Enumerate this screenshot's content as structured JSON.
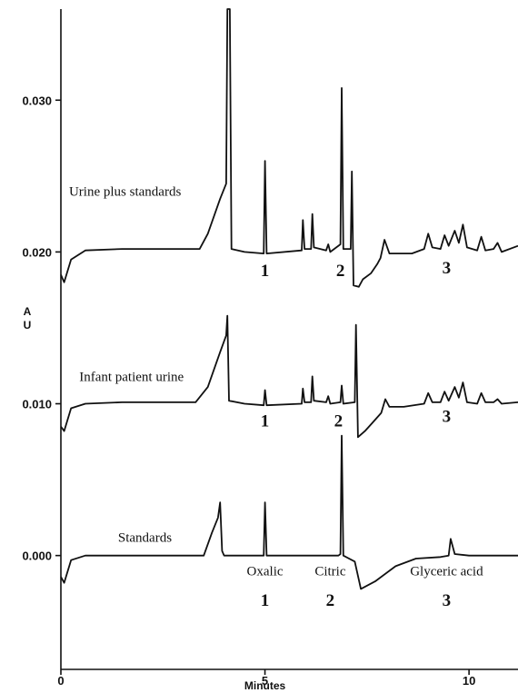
{
  "chart_data": {
    "type": "line",
    "xlabel": "Minutes",
    "ylabel": "AU",
    "xlim": [
      0,
      11.2
    ],
    "ylim": [
      -0.0075,
      0.036
    ],
    "x_ticks": [
      {
        "value": 0,
        "label": "0"
      },
      {
        "value": 5,
        "label": "5"
      },
      {
        "value": 10,
        "label": "10"
      }
    ],
    "y_ticks": [
      {
        "value": 0.0,
        "label": "0.000"
      },
      {
        "value": 0.01,
        "label": "0.010"
      },
      {
        "value": 0.02,
        "label": "0.020"
      },
      {
        "value": 0.03,
        "label": "0.030"
      }
    ],
    "series": [
      {
        "name": "Urine plus standards",
        "baseline": 0.0202,
        "start_value": 0.018,
        "points": [
          [
            0.0,
            0.0185
          ],
          [
            0.08,
            0.018
          ],
          [
            0.25,
            0.0195
          ],
          [
            0.6,
            0.0201
          ],
          [
            1.5,
            0.0202
          ],
          [
            3.4,
            0.0202
          ],
          [
            3.6,
            0.0212
          ],
          [
            3.9,
            0.0235
          ],
          [
            4.05,
            0.0245
          ],
          [
            4.08,
            0.036
          ],
          [
            4.14,
            0.036
          ],
          [
            4.18,
            0.0202
          ],
          [
            4.5,
            0.02
          ],
          [
            4.97,
            0.0199
          ],
          [
            5.0,
            0.026
          ],
          [
            5.04,
            0.0199
          ],
          [
            5.9,
            0.0201
          ],
          [
            5.93,
            0.0221
          ],
          [
            5.97,
            0.0202
          ],
          [
            6.13,
            0.0202
          ],
          [
            6.16,
            0.0225
          ],
          [
            6.2,
            0.0203
          ],
          [
            6.5,
            0.0201
          ],
          [
            6.55,
            0.0205
          ],
          [
            6.6,
            0.02
          ],
          [
            6.85,
            0.0205
          ],
          [
            6.88,
            0.0308
          ],
          [
            6.92,
            0.0202
          ],
          [
            7.1,
            0.0202
          ],
          [
            7.13,
            0.0253
          ],
          [
            7.17,
            0.0178
          ],
          [
            7.3,
            0.0177
          ],
          [
            7.4,
            0.0182
          ],
          [
            7.6,
            0.0186
          ],
          [
            7.75,
            0.0192
          ],
          [
            7.83,
            0.0196
          ],
          [
            7.93,
            0.0208
          ],
          [
            8.05,
            0.0199
          ],
          [
            8.3,
            0.0199
          ],
          [
            8.6,
            0.0199
          ],
          [
            8.9,
            0.0202
          ],
          [
            9.0,
            0.0212
          ],
          [
            9.1,
            0.0203
          ],
          [
            9.3,
            0.0202
          ],
          [
            9.4,
            0.0211
          ],
          [
            9.5,
            0.0204
          ],
          [
            9.65,
            0.0214
          ],
          [
            9.75,
            0.0206
          ],
          [
            9.85,
            0.0218
          ],
          [
            9.95,
            0.0203
          ],
          [
            10.2,
            0.0201
          ],
          [
            10.3,
            0.021
          ],
          [
            10.4,
            0.0201
          ],
          [
            10.6,
            0.0202
          ],
          [
            10.7,
            0.0206
          ],
          [
            10.8,
            0.02
          ],
          [
            11.2,
            0.0204
          ]
        ]
      },
      {
        "name": "Infant patient urine",
        "baseline": 0.0101,
        "start_value": 0.0082,
        "points": [
          [
            0.0,
            0.0085
          ],
          [
            0.08,
            0.0082
          ],
          [
            0.25,
            0.0097
          ],
          [
            0.6,
            0.01
          ],
          [
            1.5,
            0.0101
          ],
          [
            3.3,
            0.0101
          ],
          [
            3.6,
            0.0111
          ],
          [
            3.9,
            0.0134
          ],
          [
            4.05,
            0.0145
          ],
          [
            4.08,
            0.0158
          ],
          [
            4.12,
            0.0102
          ],
          [
            4.5,
            0.01
          ],
          [
            4.97,
            0.0099
          ],
          [
            5.0,
            0.0109
          ],
          [
            5.04,
            0.0099
          ],
          [
            5.9,
            0.01
          ],
          [
            5.93,
            0.011
          ],
          [
            5.97,
            0.0101
          ],
          [
            6.13,
            0.0101
          ],
          [
            6.16,
            0.0118
          ],
          [
            6.2,
            0.0102
          ],
          [
            6.5,
            0.0101
          ],
          [
            6.55,
            0.0105
          ],
          [
            6.6,
            0.01
          ],
          [
            6.85,
            0.0101
          ],
          [
            6.88,
            0.0112
          ],
          [
            6.92,
            0.01
          ],
          [
            7.2,
            0.0101
          ],
          [
            7.23,
            0.0152
          ],
          [
            7.28,
            0.0078
          ],
          [
            7.45,
            0.0082
          ],
          [
            7.65,
            0.0088
          ],
          [
            7.85,
            0.0094
          ],
          [
            7.95,
            0.0103
          ],
          [
            8.05,
            0.0098
          ],
          [
            8.4,
            0.0098
          ],
          [
            8.9,
            0.01
          ],
          [
            9.0,
            0.0107
          ],
          [
            9.1,
            0.0101
          ],
          [
            9.3,
            0.0101
          ],
          [
            9.4,
            0.0108
          ],
          [
            9.5,
            0.0102
          ],
          [
            9.65,
            0.0111
          ],
          [
            9.75,
            0.0104
          ],
          [
            9.85,
            0.0114
          ],
          [
            9.95,
            0.0101
          ],
          [
            10.2,
            0.01
          ],
          [
            10.3,
            0.0107
          ],
          [
            10.4,
            0.0101
          ],
          [
            10.6,
            0.0101
          ],
          [
            10.7,
            0.0103
          ],
          [
            10.8,
            0.01
          ],
          [
            11.2,
            0.0101
          ]
        ]
      },
      {
        "name": "Standards",
        "baseline": 0.0,
        "start_value": -0.0018,
        "points": [
          [
            0.0,
            -0.0014
          ],
          [
            0.08,
            -0.0018
          ],
          [
            0.25,
            -0.0003
          ],
          [
            0.6,
            0.0
          ],
          [
            1.5,
            0.0
          ],
          [
            3.5,
            0.0
          ],
          [
            3.7,
            0.0015
          ],
          [
            3.85,
            0.0025
          ],
          [
            3.9,
            0.0035
          ],
          [
            3.95,
            0.0003
          ],
          [
            4.0,
            0.0
          ],
          [
            4.97,
            0.0
          ],
          [
            5.0,
            0.0035
          ],
          [
            5.04,
            0.0
          ],
          [
            6.8,
            0.0
          ],
          [
            6.85,
            0.0001
          ],
          [
            6.88,
            0.0079
          ],
          [
            6.92,
            0.0
          ],
          [
            7.2,
            -0.0004
          ],
          [
            7.35,
            -0.0022
          ],
          [
            7.7,
            -0.0017
          ],
          [
            8.2,
            -0.0007
          ],
          [
            8.7,
            -0.0002
          ],
          [
            9.3,
            -0.0001
          ],
          [
            9.5,
            0.0
          ],
          [
            9.55,
            0.0011
          ],
          [
            9.65,
            0.0001
          ],
          [
            10.0,
            0.0
          ],
          [
            11.2,
            0.0
          ]
        ]
      }
    ],
    "trace_labels": [
      {
        "text": "Urine plus standards",
        "x": 0.2,
        "y": 0.0237
      },
      {
        "text": "Infant patient urine",
        "x": 0.45,
        "y": 0.0115
      },
      {
        "text": "Standards",
        "x": 1.4,
        "y": 0.0009
      }
    ],
    "peak_numbers": [
      {
        "text": "1",
        "x": 5.0,
        "y": 0.0184
      },
      {
        "text": "2",
        "x": 6.85,
        "y": 0.0184
      },
      {
        "text": "3",
        "x": 9.45,
        "y": 0.0186
      },
      {
        "text": "1",
        "x": 5.0,
        "y": 0.0085
      },
      {
        "text": "2",
        "x": 6.8,
        "y": 0.0085
      },
      {
        "text": "3",
        "x": 9.45,
        "y": 0.0088
      },
      {
        "text": "1",
        "x": 5.0,
        "y": -0.0033
      },
      {
        "text": "2",
        "x": 6.6,
        "y": -0.0033
      },
      {
        "text": "3",
        "x": 9.45,
        "y": -0.0033
      }
    ],
    "compound_labels": [
      {
        "text": "Oxalic",
        "x": 5.0,
        "y": -0.0013
      },
      {
        "text": "Citric",
        "x": 6.6,
        "y": -0.0013
      },
      {
        "text": "Glyceric acid",
        "x": 9.45,
        "y": -0.0013
      }
    ]
  }
}
